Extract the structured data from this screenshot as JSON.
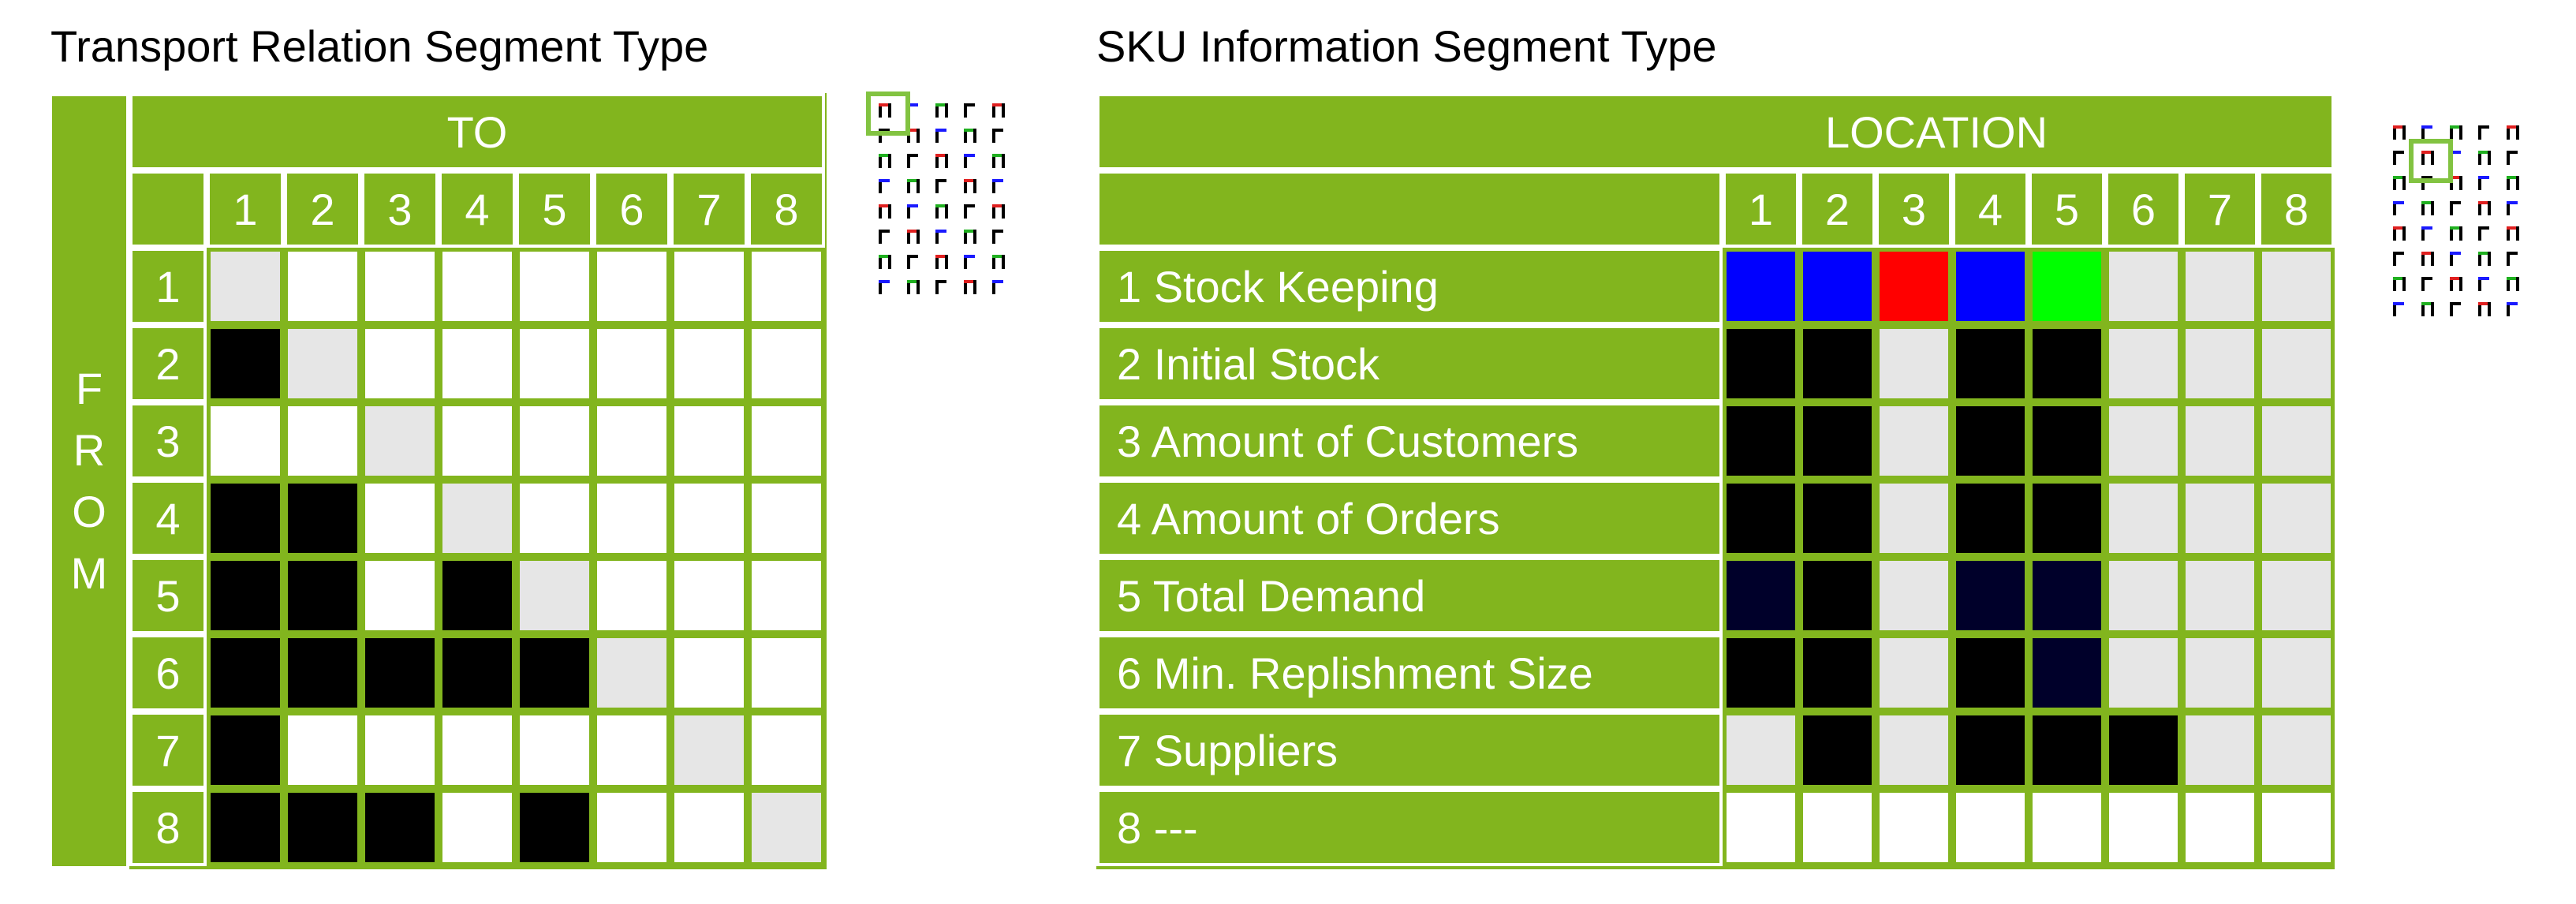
{
  "left": {
    "title": "Transport Relation Segment Type",
    "to_label": "TO",
    "from_label": "FROM",
    "col_labels": [
      "1",
      "2",
      "3",
      "4",
      "5",
      "6",
      "7",
      "8"
    ],
    "row_labels": [
      "1",
      "2",
      "3",
      "4",
      "5",
      "6",
      "7",
      "8"
    ],
    "matrix": [
      [
        "g",
        "w",
        "w",
        "w",
        "w",
        "w",
        "w",
        "w"
      ],
      [
        "k",
        "g",
        "w",
        "w",
        "w",
        "w",
        "w",
        "w"
      ],
      [
        "w",
        "w",
        "g",
        "w",
        "w",
        "w",
        "w",
        "w"
      ],
      [
        "k",
        "k",
        "w",
        "g",
        "w",
        "w",
        "w",
        "w"
      ],
      [
        "k",
        "k",
        "w",
        "k",
        "g",
        "w",
        "w",
        "w"
      ],
      [
        "k",
        "k",
        "k",
        "k",
        "k",
        "g",
        "w",
        "w"
      ],
      [
        "k",
        "w",
        "w",
        "w",
        "w",
        "w",
        "g",
        "w"
      ],
      [
        "k",
        "k",
        "k",
        "w",
        "k",
        "w",
        "w",
        "g"
      ]
    ]
  },
  "right": {
    "title": "SKU Information Segment Type",
    "location_label": "LOCATION",
    "col_labels": [
      "1",
      "2",
      "3",
      "4",
      "5",
      "6",
      "7",
      "8"
    ],
    "row_labels": [
      "1 Stock Keeping",
      "2 Initial Stock",
      "3 Amount of Customers",
      "4 Amount of Orders",
      "5 Total Demand",
      "6 Min. Replishment Size",
      "7 Suppliers",
      "8 ---"
    ],
    "matrix": [
      [
        "b",
        "b",
        "r",
        "b",
        "n",
        "g",
        "g",
        "g"
      ],
      [
        "k",
        "k",
        "g",
        "k",
        "k",
        "g",
        "g",
        "g"
      ],
      [
        "k",
        "k",
        "g",
        "k",
        "k",
        "g",
        "g",
        "g"
      ],
      [
        "k",
        "k",
        "g",
        "k",
        "k",
        "g",
        "g",
        "g"
      ],
      [
        "d",
        "k",
        "g",
        "d",
        "d",
        "g",
        "g",
        "g"
      ],
      [
        "k",
        "k",
        "g",
        "k",
        "d",
        "g",
        "g",
        "g"
      ],
      [
        "g",
        "k",
        "g",
        "k",
        "k",
        "k",
        "g",
        "g"
      ],
      [
        "w",
        "w",
        "w",
        "w",
        "w",
        "w",
        "w",
        "w"
      ]
    ]
  },
  "colors": {
    "k": "#000000",
    "w": "#ffffff",
    "g": "#e6e6e6",
    "b": "#0000ff",
    "r": "#ff0000",
    "n": "#00ff00",
    "d": "#00002a",
    "accent": "#82b51e",
    "thumb_highlight": "#82c341"
  }
}
